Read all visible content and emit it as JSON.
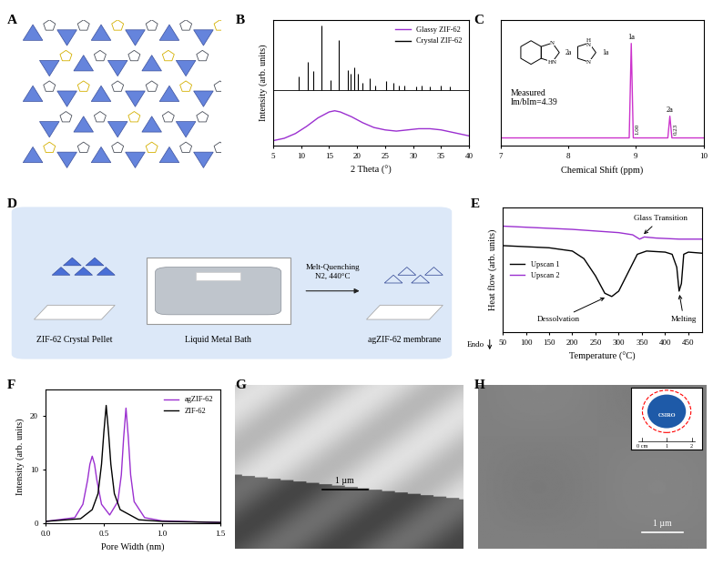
{
  "chart_data": [
    {
      "label": "B",
      "type": "line",
      "xlabel": "2 Theta (°)",
      "ylabel": "Intensity (arb. units)",
      "xlim": [
        5,
        40
      ],
      "xticks": [
        5,
        10,
        15,
        20,
        25,
        30,
        35,
        40
      ],
      "ylim": [
        0,
        105
      ],
      "tick_labels": "x",
      "legend": "upper right",
      "series": [
        {
          "name": "Glassy ZIF-62",
          "color": "#9b30d0",
          "x": [
            5,
            7,
            9,
            11,
            13,
            15,
            16,
            17,
            19,
            21,
            23,
            25,
            27,
            29,
            31,
            33,
            35,
            37,
            39,
            40
          ],
          "values": [
            4,
            6,
            10,
            16,
            23,
            28,
            29,
            28,
            24,
            19,
            15,
            13,
            12,
            13,
            14,
            14,
            13,
            11,
            9,
            8
          ]
        },
        {
          "name": "Crystal ZIF-62",
          "color": "#000000",
          "type": "stick",
          "baseline": 46,
          "x": [
            9.5,
            11.2,
            12.2,
            13.7,
            15.3,
            16.7,
            18.3,
            18.8,
            19.5,
            20.2,
            21.0,
            22.3,
            23.2,
            25.1,
            26.5,
            27.5,
            28.5,
            30.5,
            31.5,
            33.0,
            35.0,
            36.5
          ],
          "values": [
            58,
            70,
            62,
            100,
            55,
            88,
            63,
            60,
            65,
            60,
            52,
            56,
            50,
            54,
            52,
            50,
            50,
            49,
            50,
            49,
            50,
            49
          ]
        }
      ]
    },
    {
      "label": "C",
      "type": "line",
      "xlabel": "Chemical Shift (ppm)",
      "xlim": [
        7,
        10
      ],
      "xticks": [
        7,
        8,
        9,
        10
      ],
      "ylim": [
        -0.08,
        1.25
      ],
      "tick_labels": "x",
      "series": [
        {
          "color": "#cc33cc",
          "line_style": "solid",
          "x": [
            7,
            8.9,
            8.93,
            8.96,
            9.47,
            9.5,
            9.53,
            10
          ],
          "values": [
            0,
            0,
            1.0,
            0,
            0,
            0.23,
            0,
            0
          ]
        }
      ],
      "annotations": [
        {
          "text": "1a",
          "x": 8.93,
          "y": 1.0
        },
        {
          "text": "2a",
          "x": 9.5,
          "y": 0.23
        }
      ],
      "integrals": [
        {
          "text": "1.00",
          "x": 8.98
        },
        {
          "text": "0.23",
          "x": 9.55
        }
      ],
      "note": [
        "Measured",
        "Im/bIm=4.39"
      ],
      "structures": [
        {
          "label": "2a",
          "atoms": [
            "N",
            "HN"
          ],
          "fused_ring": true
        },
        {
          "label": "1a",
          "atoms": [
            "H\nN",
            "N"
          ],
          "fused_ring": false
        }
      ]
    },
    {
      "label": "E",
      "type": "line",
      "xlabel": "Temperature (°C)",
      "ylabel": "Heat flow (arb. units)",
      "xlim": [
        50,
        480
      ],
      "xticks": [
        50,
        100,
        150,
        200,
        250,
        300,
        350,
        400,
        450
      ],
      "ylim": [
        0.0,
        1.15
      ],
      "tick_labels": "x",
      "legend": "center left",
      "direction_label": "Endo",
      "series": [
        {
          "name": "Upscan 1",
          "color": "#000000",
          "x": [
            50,
            100,
            150,
            200,
            225,
            250,
            270,
            285,
            300,
            320,
            340,
            360,
            400,
            415,
            425,
            430,
            435,
            440,
            450,
            480
          ],
          "values": [
            0.8,
            0.79,
            0.78,
            0.75,
            0.68,
            0.52,
            0.36,
            0.33,
            0.38,
            0.55,
            0.72,
            0.75,
            0.74,
            0.72,
            0.6,
            0.38,
            0.45,
            0.72,
            0.74,
            0.73
          ]
        },
        {
          "name": "Upscan 2",
          "color": "#9b30d0",
          "x": [
            50,
            100,
            200,
            300,
            330,
            345,
            355,
            380,
            430,
            480
          ],
          "values": [
            0.98,
            0.97,
            0.95,
            0.92,
            0.9,
            0.86,
            0.88,
            0.87,
            0.86,
            0.86
          ]
        }
      ],
      "annotations": [
        {
          "text": "Glass Transition",
          "x": 350,
          "y": 0.89,
          "text_x": 390,
          "text_y": 1.05
        },
        {
          "text": "Dessolvation",
          "x": 275,
          "y": 0.33,
          "text_x": 170,
          "text_y": 0.12
        },
        {
          "text": "Melting",
          "x": 430,
          "y": 0.37,
          "text_x": 440,
          "text_y": 0.12
        }
      ]
    },
    {
      "label": "F",
      "type": "line",
      "xlabel": "Pore Width (nm)",
      "ylabel": "Intensity (arb. units)",
      "xlim": [
        0.0,
        1.5
      ],
      "xticks": [
        0.0,
        0.5,
        1.0,
        1.5
      ],
      "ylim": [
        0,
        25
      ],
      "yticks": [
        0,
        10,
        20
      ],
      "legend": "upper right",
      "series": [
        {
          "name": "agZIF-62",
          "color": "#9b30d0",
          "x": [
            0,
            0.25,
            0.32,
            0.36,
            0.38,
            0.4,
            0.42,
            0.44,
            0.48,
            0.55,
            0.62,
            0.65,
            0.67,
            0.69,
            0.71,
            0.73,
            0.76,
            0.85,
            1.0,
            1.5
          ],
          "values": [
            0.3,
            1.0,
            3.5,
            8,
            11,
            12.5,
            11,
            8,
            3.5,
            1.5,
            4,
            9,
            16,
            21.5,
            16,
            9,
            4,
            1,
            0.4,
            0.1
          ]
        },
        {
          "name": "ZIF-62",
          "color": "#000000",
          "x": [
            0,
            0.3,
            0.4,
            0.45,
            0.48,
            0.5,
            0.52,
            0.54,
            0.56,
            0.59,
            0.64,
            0.8,
            1.0,
            1.5
          ],
          "values": [
            0.3,
            0.8,
            2.5,
            5.5,
            11,
            17,
            22,
            17,
            11,
            5.5,
            2.5,
            0.6,
            0.3,
            0.1
          ]
        }
      ]
    }
  ],
  "diagrams": {
    "A": {
      "label": "A"
    },
    "D": {
      "label": "D",
      "steps": [
        "ZIF-62 Crystal Pellet",
        "Liquid Metal Bath",
        "agZIF-62 membrane"
      ],
      "arrow_label": [
        "Melt-Quenching",
        "N2, 440°C"
      ]
    },
    "G": {
      "label": "G",
      "scale_bar": "1 µm"
    },
    "H": {
      "label": "H",
      "scale_bar": "1 µm",
      "inset": {
        "logo": "CSIRO",
        "ruler": [
          "0 cm",
          "1",
          "2"
        ]
      }
    }
  }
}
